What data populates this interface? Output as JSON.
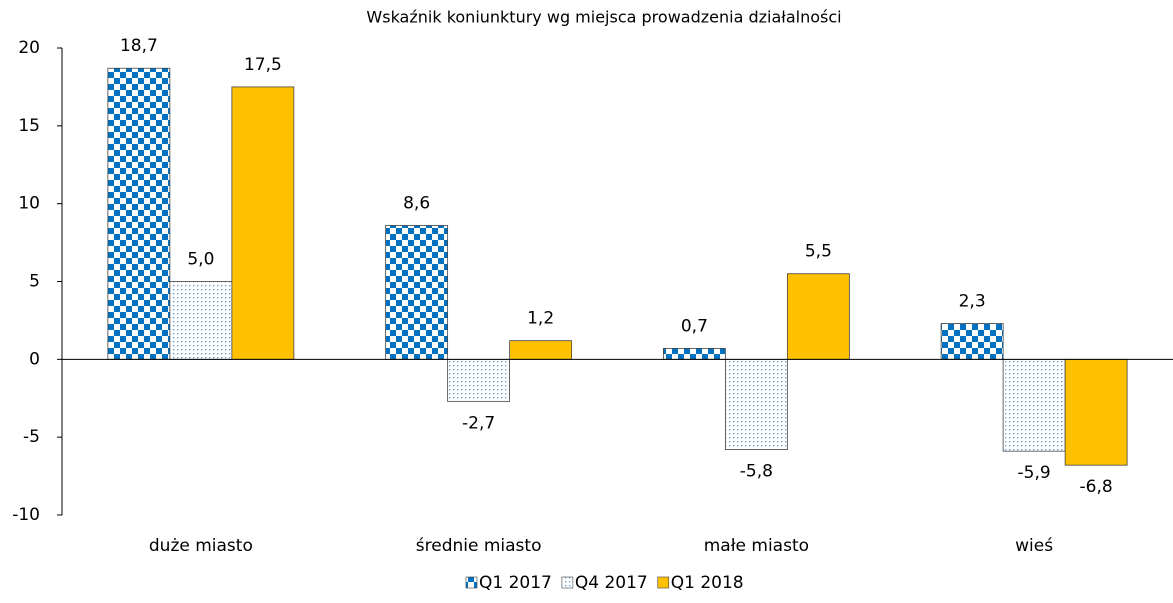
{
  "chart_data": {
    "type": "bar",
    "title": "Wskaźnik koniunktury wg miejsca prowadzenia działalności",
    "categories": [
      "duże miasto",
      "średnie miasto",
      "małe miasto",
      "wieś"
    ],
    "series": [
      {
        "name": "Q1 2017",
        "color": "#0070c0",
        "pattern": "checker",
        "values": [
          18.7,
          8.6,
          0.7,
          2.3
        ],
        "value_labels": [
          "18,7",
          "8,6",
          "0,7",
          "2,3"
        ]
      },
      {
        "name": "Q4 2017",
        "color": "#5b9bd5",
        "pattern": "dots",
        "values": [
          5.0,
          -2.7,
          -5.8,
          -5.9
        ],
        "value_labels": [
          "5,0",
          "-2,7",
          "-5,8",
          "-5,9"
        ]
      },
      {
        "name": "Q1 2018",
        "color": "#ffc000",
        "pattern": "solid",
        "values": [
          17.5,
          1.2,
          5.5,
          -6.8
        ],
        "value_labels": [
          "17,5",
          "1,2",
          "5,5",
          "-6,8"
        ]
      }
    ],
    "ylim": [
      -10,
      20
    ],
    "yticks": [
      20,
      15,
      10,
      5,
      0,
      -5,
      -10
    ],
    "grid": false,
    "legend": "bottom"
  }
}
